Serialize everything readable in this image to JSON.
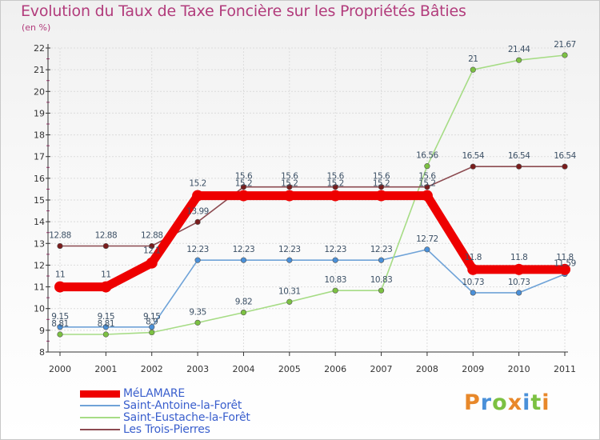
{
  "header": {
    "title": "Evolution du Taux de Taxe Foncière sur les Propriétés Bâties",
    "unit": "(en %)"
  },
  "brand": {
    "text": "Proxiti",
    "colors": [
      "#e8882a",
      "#4a90d9",
      "#7cc142",
      "#e8882a",
      "#4a90d9",
      "#7cc142",
      "#e8882a"
    ]
  },
  "chart_data": {
    "type": "line",
    "title": "Evolution du Taux de Taxe Foncière sur les Propriétés Bâties",
    "ylabel": "(en %)",
    "xlabel": "",
    "ylim": [
      8,
      22
    ],
    "yticks": [
      8,
      9,
      10,
      11,
      12,
      13,
      14,
      15,
      16,
      17,
      18,
      19,
      20,
      21,
      22
    ],
    "categories": [
      "2000",
      "2001",
      "2002",
      "2003",
      "2004",
      "2005",
      "2006",
      "2007",
      "2008",
      "2009",
      "2010",
      "2011"
    ],
    "grid": true,
    "legend_position": "bottom-left",
    "series": [
      {
        "name": "MéLAMARE",
        "color": "#ee0000",
        "marker_color": "#ee0000",
        "values": [
          11,
          11,
          12.1,
          15.2,
          15.2,
          15.2,
          15.2,
          15.2,
          15.2,
          11.8,
          11.8,
          11.8
        ],
        "labels": [
          "11",
          "11",
          "12.1",
          "15.2",
          "15.2",
          "15.2",
          "15.2",
          "15.2",
          "15.2",
          "11.8",
          "11.8",
          "11.8"
        ]
      },
      {
        "name": "Saint-Antoine-la-Forêt",
        "color": "#6fa3d8",
        "marker_color": "#4a90d9",
        "values": [
          9.15,
          9.15,
          9.15,
          12.23,
          12.23,
          12.23,
          12.23,
          12.23,
          12.72,
          10.73,
          10.73,
          11.59
        ],
        "labels": [
          "9.15",
          "9.15",
          "9.15",
          "12.23",
          "12.23",
          "12.23",
          "12.23",
          "12.23",
          "12.72",
          "10.73",
          "10.73",
          "11.59"
        ]
      },
      {
        "name": "Saint-Eustache-la-Forêt",
        "color": "#a6dc85",
        "marker_color": "#7cc142",
        "values": [
          8.81,
          8.81,
          8.9,
          9.35,
          9.82,
          10.31,
          10.83,
          10.83,
          16.56,
          21,
          21.44,
          21.67
        ],
        "labels": [
          "8.81",
          "8.81",
          "8.9",
          "9.35",
          "9.82",
          "10.31",
          "10.83",
          "10.83",
          "16.56",
          "21",
          "21.44",
          "21.67"
        ]
      },
      {
        "name": "Les Trois-Pierres",
        "color": "#8c4a50",
        "marker_color": "#7a1c1c",
        "values": [
          12.88,
          12.88,
          12.88,
          13.99,
          15.6,
          15.6,
          15.6,
          15.6,
          15.6,
          16.54,
          16.54,
          16.54
        ],
        "labels": [
          "12.88",
          "12.88",
          "12.88",
          "13.99",
          "15.6",
          "15.6",
          "15.6",
          "15.6",
          "15.6",
          "16.54",
          "16.54",
          "16.54"
        ]
      }
    ]
  }
}
